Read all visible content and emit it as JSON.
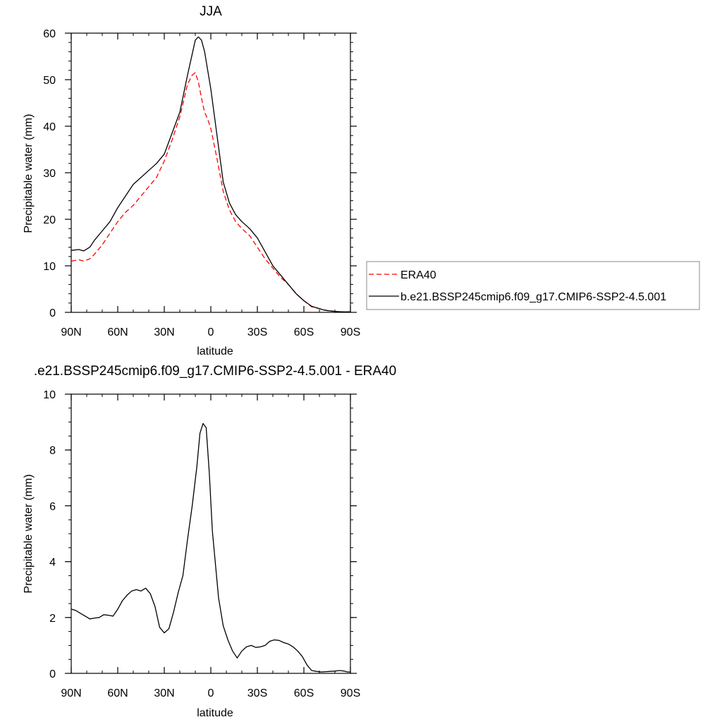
{
  "chart_data": [
    {
      "type": "line",
      "title": "JJA",
      "xlabel": "latitude",
      "ylabel": "Precipitable water (mm)",
      "xlim": [
        90,
        -90
      ],
      "ylim": [
        0,
        60
      ],
      "xticks": [
        90,
        60,
        30,
        0,
        -30,
        -60,
        -90
      ],
      "xtick_labels": [
        "90N",
        "60N",
        "30N",
        "0",
        "30S",
        "60S",
        "90S"
      ],
      "yticks": [
        0,
        10,
        20,
        30,
        40,
        50,
        60
      ],
      "ytick_labels": [
        "0",
        "10",
        "20",
        "30",
        "40",
        "50",
        "60"
      ],
      "legend": {
        "placement": "right"
      },
      "series": [
        {
          "name": "ERA40",
          "color": "#ff0000",
          "dash": true,
          "x": [
            90,
            85,
            82,
            78,
            75,
            70,
            65,
            60,
            55,
            50,
            45,
            40,
            35,
            30,
            25,
            20,
            15,
            12,
            10,
            8,
            6,
            4,
            2,
            0,
            -4,
            -8,
            -12,
            -16,
            -20,
            -25,
            -30,
            -35,
            -40,
            -45,
            -50,
            -55,
            -60,
            -65,
            -70,
            -73,
            -76,
            -80,
            -85,
            -90
          ],
          "values": [
            11.0,
            11.3,
            11.0,
            11.5,
            12.5,
            14.5,
            17.0,
            19.5,
            21.5,
            23.0,
            25.0,
            27.0,
            29.0,
            32.5,
            37.0,
            42.0,
            49.0,
            51.0,
            51.5,
            49.5,
            46.0,
            43.0,
            41.5,
            39.5,
            33.0,
            26.0,
            22.0,
            19.5,
            18.0,
            16.5,
            14.0,
            11.5,
            9.5,
            7.5,
            6.0,
            4.0,
            2.5,
            1.2,
            0.8,
            0.5,
            0.3,
            0.2,
            0.1,
            0.1
          ]
        },
        {
          "name": "b.e21.BSSP245cmip6.f09_g17.CMIP6-SSP2-4.5.001",
          "color": "#000000",
          "dash": false,
          "x": [
            90,
            85,
            82,
            78,
            75,
            70,
            65,
            60,
            55,
            50,
            45,
            40,
            35,
            30,
            25,
            20,
            15,
            12,
            10,
            8,
            6,
            4,
            2,
            0,
            -4,
            -8,
            -12,
            -16,
            -20,
            -25,
            -30,
            -35,
            -40,
            -45,
            -50,
            -55,
            -60,
            -65,
            -70,
            -73,
            -76,
            -80,
            -85,
            -90
          ],
          "values": [
            13.3,
            13.5,
            13.2,
            14.0,
            15.5,
            17.5,
            19.5,
            22.5,
            25.0,
            27.5,
            29.0,
            30.5,
            32.0,
            34.0,
            38.5,
            43.0,
            51.0,
            55.5,
            58.5,
            59.2,
            58.5,
            56.0,
            52.0,
            48.0,
            38.0,
            28.0,
            23.5,
            21.0,
            19.5,
            18.0,
            16.0,
            13.0,
            10.0,
            8.0,
            6.0,
            4.0,
            2.5,
            1.3,
            0.8,
            0.5,
            0.35,
            0.2,
            0.1,
            0.1
          ]
        }
      ]
    },
    {
      "type": "line",
      "title": ".e21.BSSP245cmip6.f09_g17.CMIP6-SSP2-4.5.001 - ERA40",
      "xlabel": "latitude",
      "ylabel": "Precipitable water (mm)",
      "xlim": [
        90,
        -90
      ],
      "ylim": [
        0,
        10
      ],
      "xticks": [
        90,
        60,
        30,
        0,
        -30,
        -60,
        -90
      ],
      "xtick_labels": [
        "90N",
        "60N",
        "30N",
        "0",
        "30S",
        "60S",
        "90S"
      ],
      "yticks": [
        0,
        2,
        4,
        6,
        8,
        10
      ],
      "ytick_labels": [
        "0",
        "2",
        "4",
        "6",
        "8",
        "10"
      ],
      "series": [
        {
          "color": "#000000",
          "dash": false,
          "x": [
            90,
            87,
            84,
            81,
            78,
            75,
            72,
            69,
            66,
            63,
            60,
            57,
            54,
            51,
            48,
            45,
            42,
            39,
            36,
            33,
            30,
            27,
            24,
            21,
            18,
            15,
            12,
            9,
            7,
            5,
            3,
            1,
            -1,
            -3,
            -5,
            -8,
            -11,
            -14,
            -17,
            -20,
            -23,
            -26,
            -29,
            -32,
            -35,
            -38,
            -41,
            -44,
            -47,
            -50,
            -53,
            -56,
            -59,
            -62,
            -65,
            -68,
            -71,
            -74,
            -77,
            -80,
            -83,
            -86,
            -88,
            -90
          ],
          "values": [
            2.3,
            2.25,
            2.15,
            2.05,
            1.95,
            1.98,
            2.0,
            2.1,
            2.08,
            2.05,
            2.3,
            2.6,
            2.8,
            2.95,
            3.0,
            2.95,
            3.05,
            2.85,
            2.4,
            1.65,
            1.45,
            1.6,
            2.2,
            2.9,
            3.5,
            4.8,
            6.0,
            7.4,
            8.6,
            8.95,
            8.8,
            7.2,
            5.1,
            3.9,
            2.7,
            1.7,
            1.2,
            0.8,
            0.55,
            0.8,
            0.95,
            1.0,
            0.93,
            0.95,
            1.0,
            1.15,
            1.2,
            1.18,
            1.1,
            1.05,
            0.95,
            0.8,
            0.6,
            0.3,
            0.1,
            0.07,
            0.05,
            0.06,
            0.07,
            0.08,
            0.1,
            0.08,
            0.05,
            0.05
          ]
        }
      ]
    }
  ]
}
